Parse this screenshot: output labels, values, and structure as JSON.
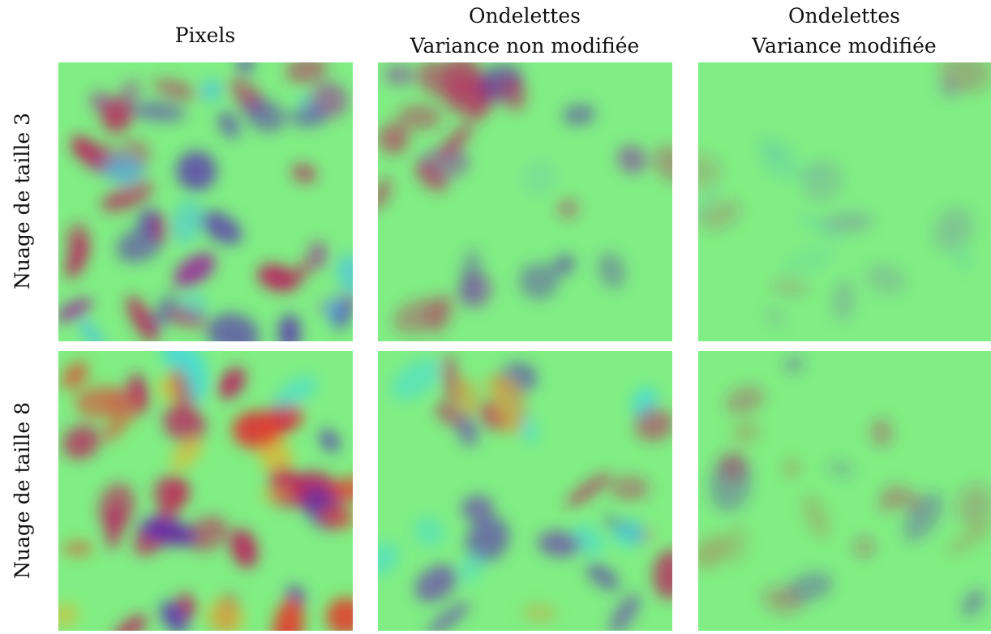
{
  "columns": [
    {
      "lines": [
        "Pixels"
      ]
    },
    {
      "lines": [
        "Ondelettes",
        "Variance non modifiée"
      ]
    },
    {
      "lines": [
        "Ondelettes",
        "Variance modifiée"
      ]
    }
  ],
  "rows": [
    "Nuage de taille 3",
    "Nuage de taille 8"
  ]
}
